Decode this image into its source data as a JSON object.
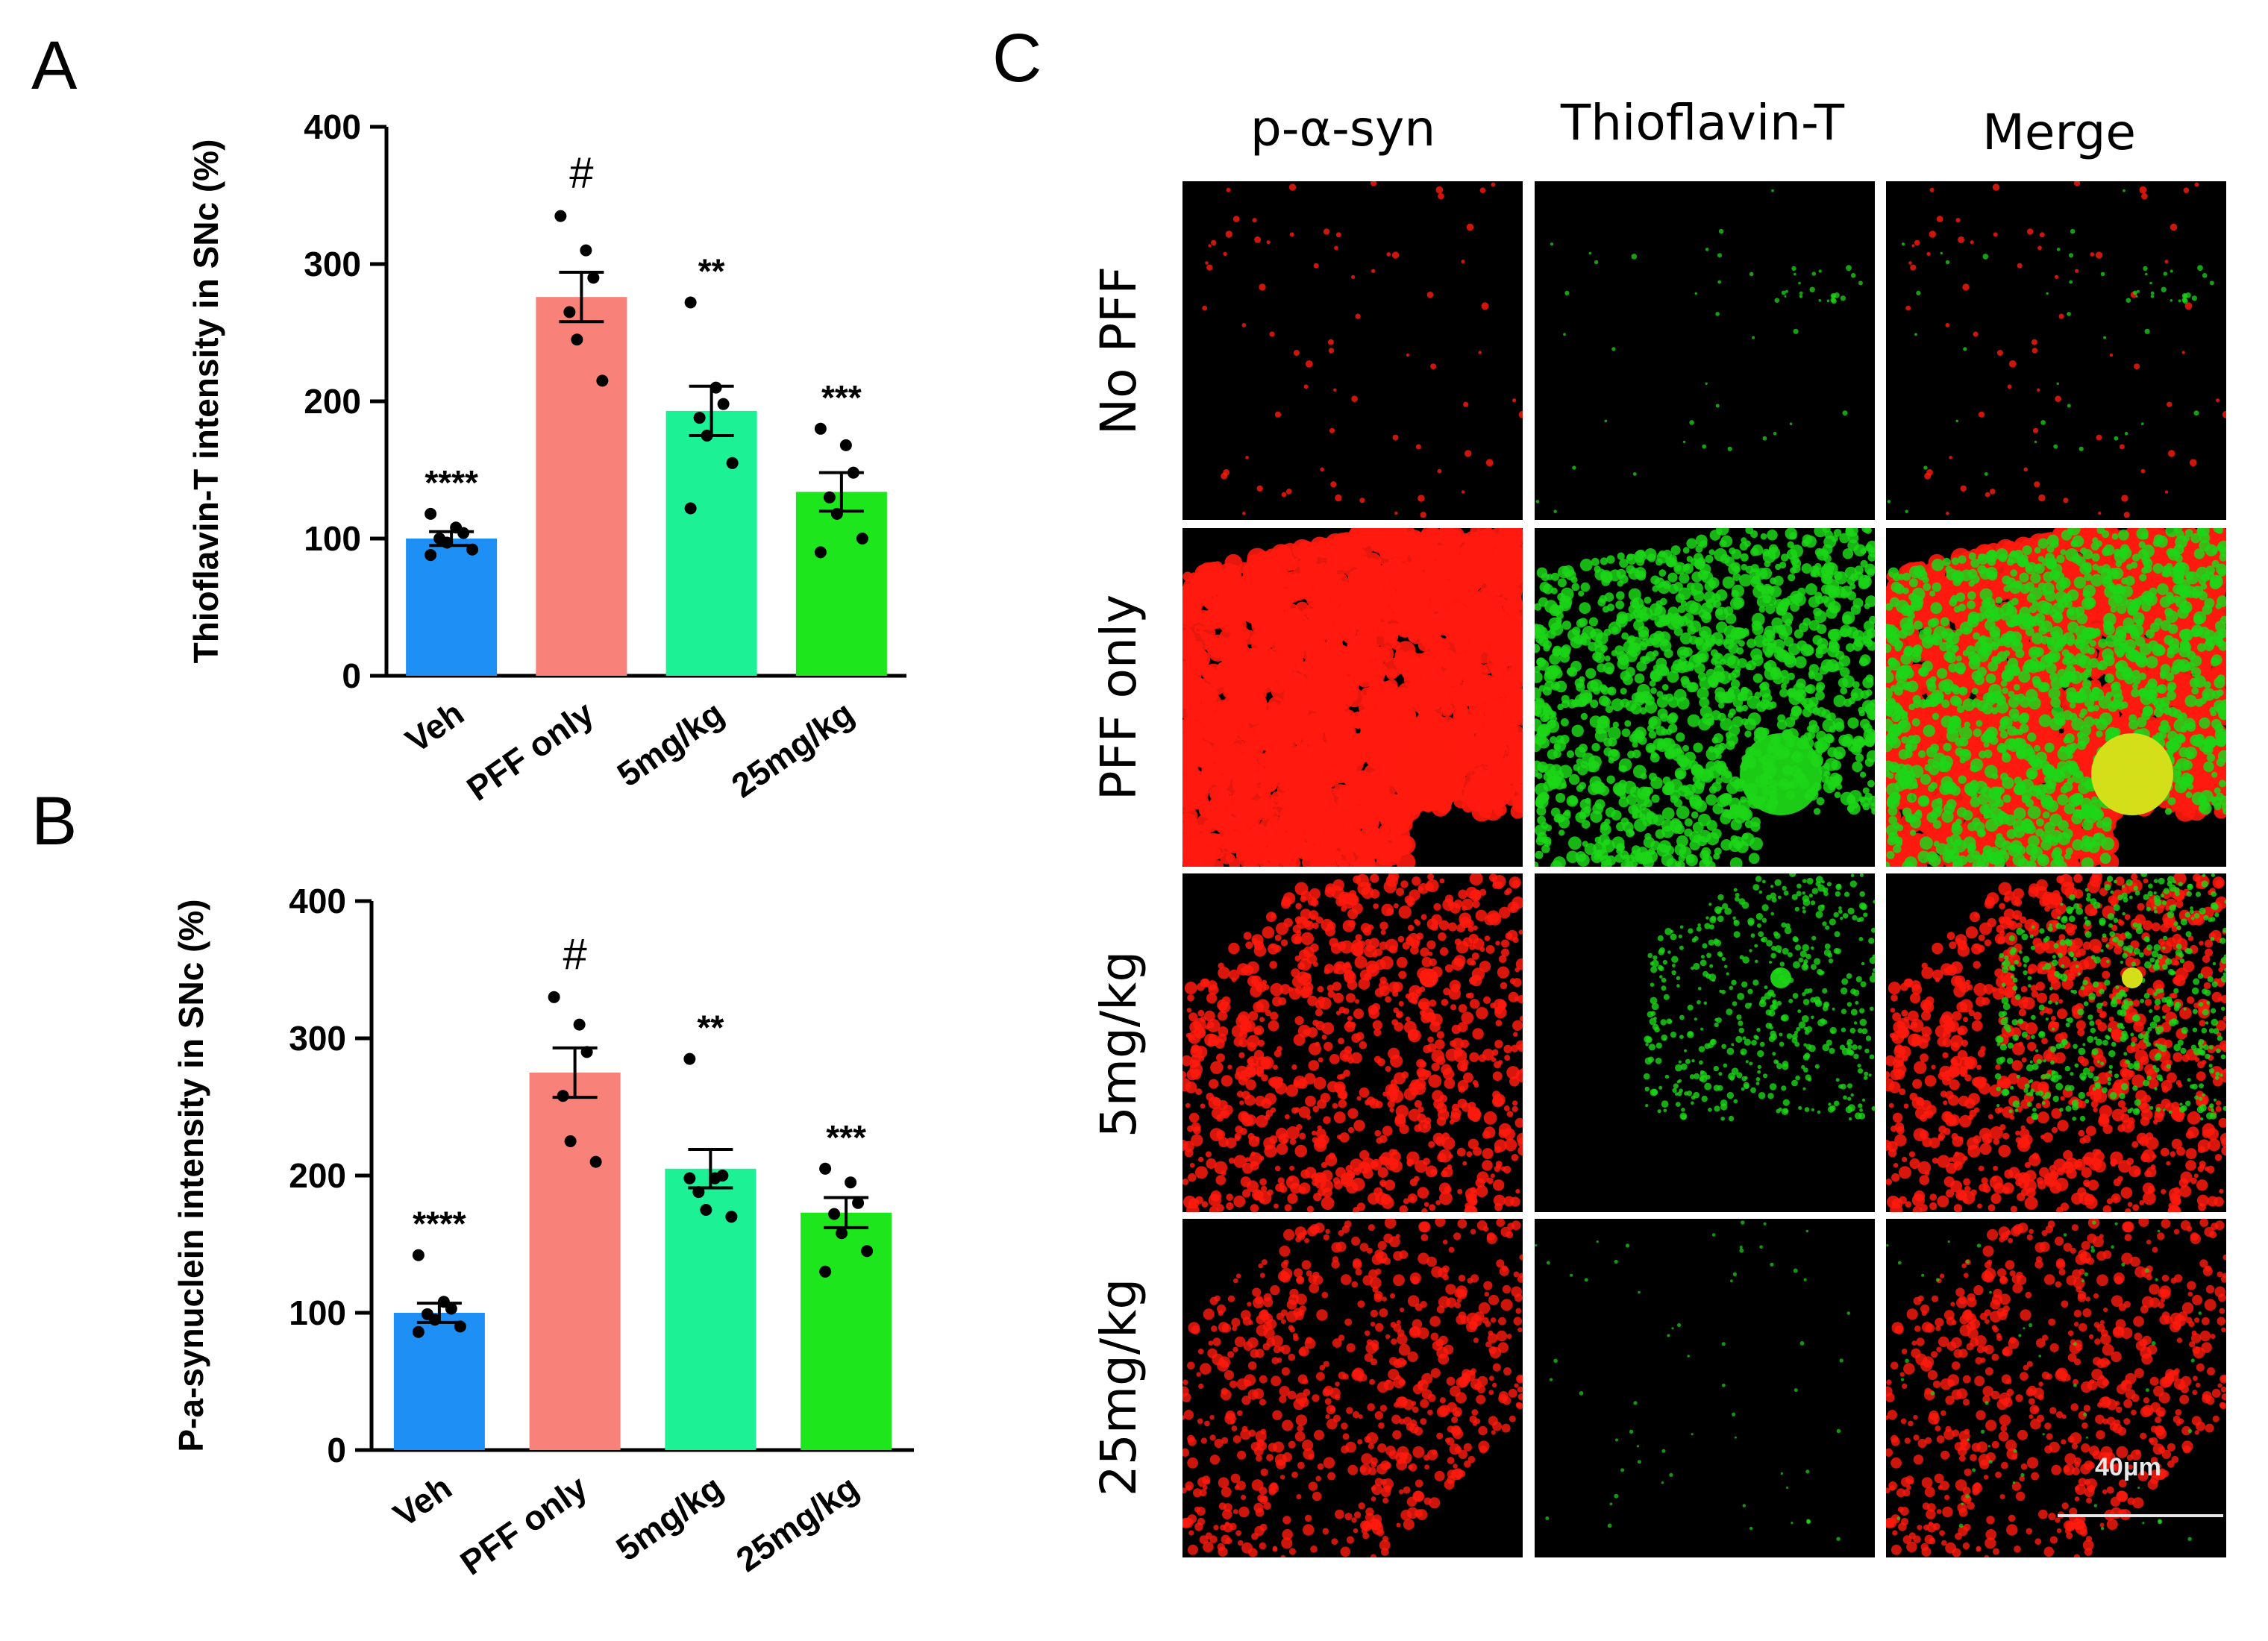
{
  "panels": {
    "a_letter": "A",
    "b_letter": "B",
    "c_letter": "C"
  },
  "chart_data": [
    {
      "type": "bar",
      "panel": "A",
      "ylabel": "Thioflavin-T intensity in SNc (%)",
      "xlabel": "",
      "ylim": [
        0,
        400
      ],
      "yticks": [
        0,
        100,
        200,
        300,
        400
      ],
      "categories": [
        "Veh",
        "PFF only",
        "5mg/kg",
        "25mg/kg"
      ],
      "values": [
        100,
        276,
        193,
        134
      ],
      "errors": [
        5,
        18,
        18,
        14
      ],
      "colors": [
        "#1e90f5",
        "#f8827a",
        "#1cf195",
        "#1de61d"
      ],
      "annotations": [
        "****",
        "#",
        "**",
        "***"
      ],
      "points": [
        [
          118,
          108,
          104,
          100,
          97,
          92,
          88
        ],
        [
          335,
          310,
          290,
          265,
          245,
          215
        ],
        [
          272,
          210,
          198,
          188,
          175,
          155,
          122
        ],
        [
          180,
          168,
          148,
          130,
          118,
          100,
          90
        ]
      ]
    },
    {
      "type": "bar",
      "panel": "B",
      "ylabel": "P-a-synuclein intensity in SNc (%)",
      "xlabel": "",
      "ylim": [
        0,
        400
      ],
      "yticks": [
        0,
        100,
        200,
        300,
        400
      ],
      "categories": [
        "Veh",
        "PFF only",
        "5mg/kg",
        "25mg/kg"
      ],
      "values": [
        100,
        275,
        205,
        173
      ],
      "errors": [
        7,
        18,
        14,
        11
      ],
      "colors": [
        "#1e90f5",
        "#f8827a",
        "#1cf195",
        "#1de61d"
      ],
      "annotations": [
        "****",
        "#",
        "**",
        "***"
      ],
      "points": [
        [
          142,
          108,
          103,
          99,
          95,
          90,
          86
        ],
        [
          330,
          310,
          290,
          258,
          225,
          210
        ],
        [
          285,
          198,
          200,
          188,
          175,
          170,
          198
        ],
        [
          205,
          195,
          180,
          172,
          158,
          145,
          130
        ]
      ]
    }
  ],
  "micrograph": {
    "columns": [
      "p-α-syn",
      "Thioflavin-T",
      "Merge"
    ],
    "rows": [
      "No PFF",
      "PFF only",
      "5mg/kg",
      "25mg/kg"
    ],
    "scale_bar_label": "40μm",
    "channel_colors": {
      "p_alpha_syn": "#ff1a0e",
      "thioflavin_t": "#1cd617",
      "merge_overlap": "#e8e01a"
    }
  }
}
